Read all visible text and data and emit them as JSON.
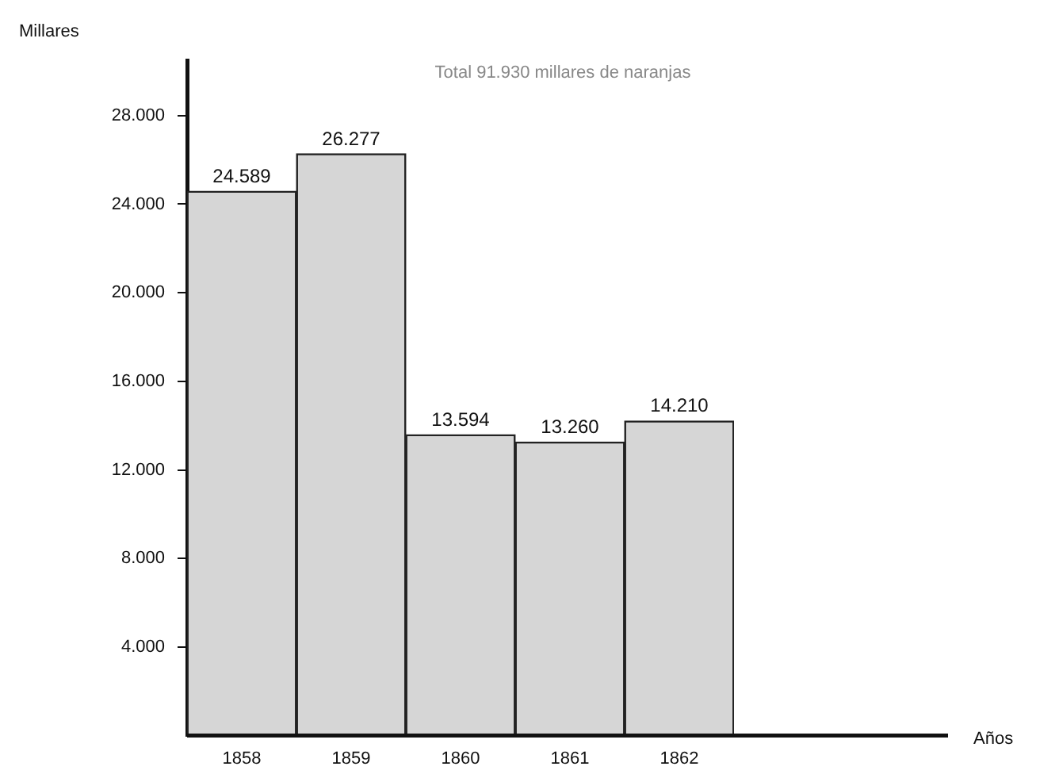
{
  "chart_data": {
    "type": "bar",
    "ylabel": "Millares",
    "annotations": [
      "Total 91.930 millares de naranjas",
      "Años"
    ],
    "categories": [
      "1858",
      "1859",
      "1860",
      "1861",
      "1862"
    ],
    "values": [
      24589,
      26277,
      13594,
      13260,
      14210
    ],
    "value_labels": [
      "24.589",
      "26.277",
      "13.594",
      "13.260",
      "14.210"
    ],
    "color": "#d6d6d6",
    "ylim": [
      0,
      30500
    ],
    "yticks": [
      {
        "value": 4000,
        "label": "4.000"
      },
      {
        "value": 8000,
        "label": "8.000"
      },
      {
        "value": 12000,
        "label": "12.000"
      },
      {
        "value": 16000,
        "label": "16.000"
      },
      {
        "value": 20000,
        "label": "20.000"
      },
      {
        "value": 24000,
        "label": "24.000"
      },
      {
        "value": 28000,
        "label": "28.000"
      }
    ],
    "grid": false,
    "legend": false
  }
}
